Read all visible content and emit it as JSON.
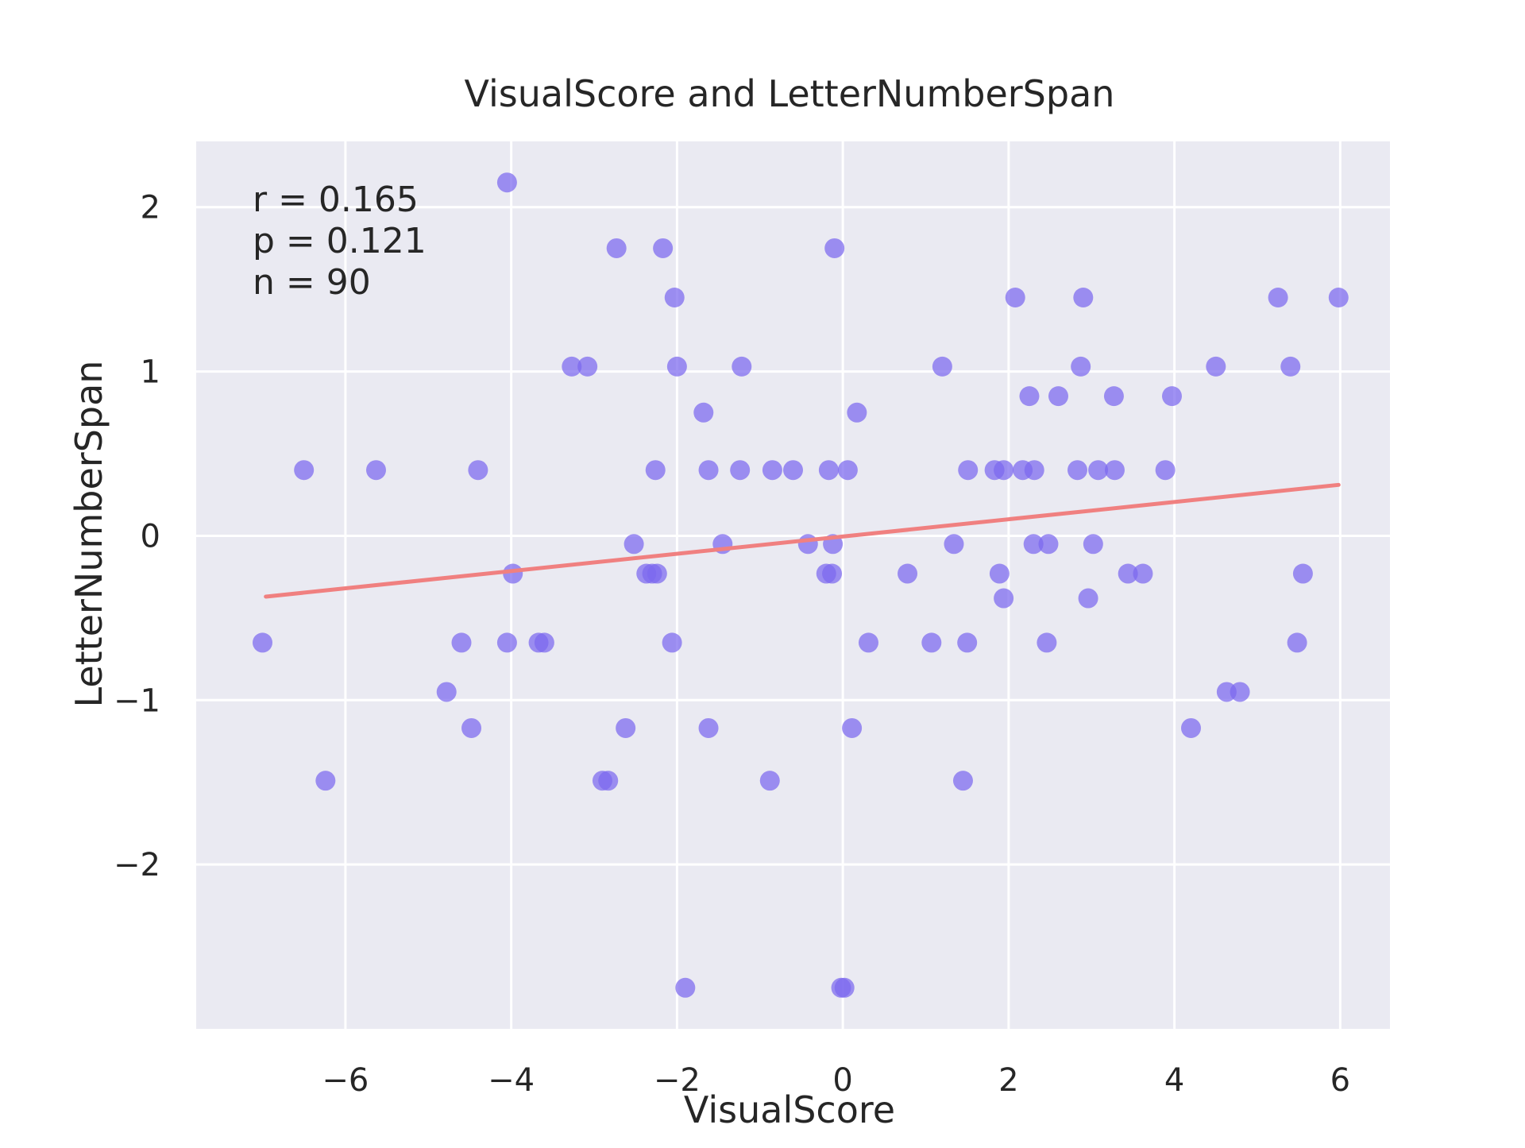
{
  "chart_data": {
    "type": "scatter",
    "title": "VisualScore and LetterNumberSpan",
    "xlabel": "VisualScore",
    "ylabel": "LetterNumberSpan",
    "xlim": [
      -7.8,
      6.6
    ],
    "ylim": [
      -3.0,
      2.4
    ],
    "xticks": [
      -6,
      -4,
      -2,
      0,
      2,
      4,
      6
    ],
    "yticks": [
      -2,
      -1,
      0,
      1,
      2
    ],
    "xtick_labels": [
      "−6",
      "−4",
      "−2",
      "0",
      "2",
      "4",
      "6"
    ],
    "ytick_labels": [
      "−2",
      "−1",
      "0",
      "1",
      "2"
    ],
    "grid": true,
    "stats": [
      "r = 0.165",
      "p = 0.121",
      "n = 90"
    ],
    "colors": {
      "background": "#eaeaf2",
      "grid": "#ffffff",
      "points": "#7b68ee",
      "fit_line": "#f08080"
    },
    "fit_line": {
      "x": [
        -6.96,
        5.98
      ],
      "y": [
        -0.37,
        0.31
      ]
    },
    "series": [
      {
        "x": [
          -4.05,
          -2.73,
          -2.17,
          -0.1,
          -2.03,
          2.08,
          2.9,
          5.25,
          5.98,
          -3.27,
          -3.08,
          -2.0,
          -1.22,
          1.2,
          2.87,
          4.5,
          5.4,
          2.25,
          2.6,
          3.27,
          3.97,
          -1.68,
          0.17,
          -6.5,
          -5.63,
          -4.4,
          -2.26,
          -1.62,
          -1.24,
          -0.85,
          -0.6,
          -0.17,
          0.06,
          1.51,
          1.83,
          1.94,
          2.17,
          2.31,
          2.83,
          3.08,
          3.28,
          3.89,
          -2.52,
          -1.45,
          -0.42,
          -0.12,
          1.34,
          2.3,
          2.48,
          3.02,
          -3.98,
          -2.37,
          -2.3,
          -2.24,
          -0.2,
          -0.13,
          0.78,
          1.89,
          3.44,
          3.62,
          5.55,
          -7.0,
          -4.6,
          -4.05,
          -3.67,
          -3.6,
          -2.06,
          0.31,
          1.07,
          1.5,
          2.46,
          5.48,
          1.94,
          2.96,
          -4.78,
          4.63,
          4.79,
          -4.48,
          -2.62,
          -1.62,
          0.11,
          4.2,
          -6.24,
          -2.9,
          -2.83,
          -0.88,
          1.45,
          -1.9,
          -0.02,
          0.02
        ],
        "y": [
          2.15,
          1.75,
          1.75,
          1.75,
          1.45,
          1.45,
          1.45,
          1.45,
          1.45,
          1.03,
          1.03,
          1.03,
          1.03,
          1.03,
          1.03,
          1.03,
          1.03,
          0.85,
          0.85,
          0.85,
          0.85,
          0.75,
          0.75,
          0.4,
          0.4,
          0.4,
          0.4,
          0.4,
          0.4,
          0.4,
          0.4,
          0.4,
          0.4,
          0.4,
          0.4,
          0.4,
          0.4,
          0.4,
          0.4,
          0.4,
          0.4,
          0.4,
          -0.05,
          -0.05,
          -0.05,
          -0.05,
          -0.05,
          -0.05,
          -0.05,
          -0.05,
          -0.23,
          -0.23,
          -0.23,
          -0.23,
          -0.23,
          -0.23,
          -0.23,
          -0.23,
          -0.23,
          -0.23,
          -0.23,
          -0.65,
          -0.65,
          -0.65,
          -0.65,
          -0.65,
          -0.65,
          -0.65,
          -0.65,
          -0.65,
          -0.65,
          -0.65,
          -0.38,
          -0.38,
          -0.95,
          -0.95,
          -0.95,
          -1.17,
          -1.17,
          -1.17,
          -1.17,
          -1.17,
          -1.49,
          -1.49,
          -1.49,
          -1.49,
          -1.49,
          -2.75,
          -2.75,
          -2.75
        ]
      }
    ]
  }
}
